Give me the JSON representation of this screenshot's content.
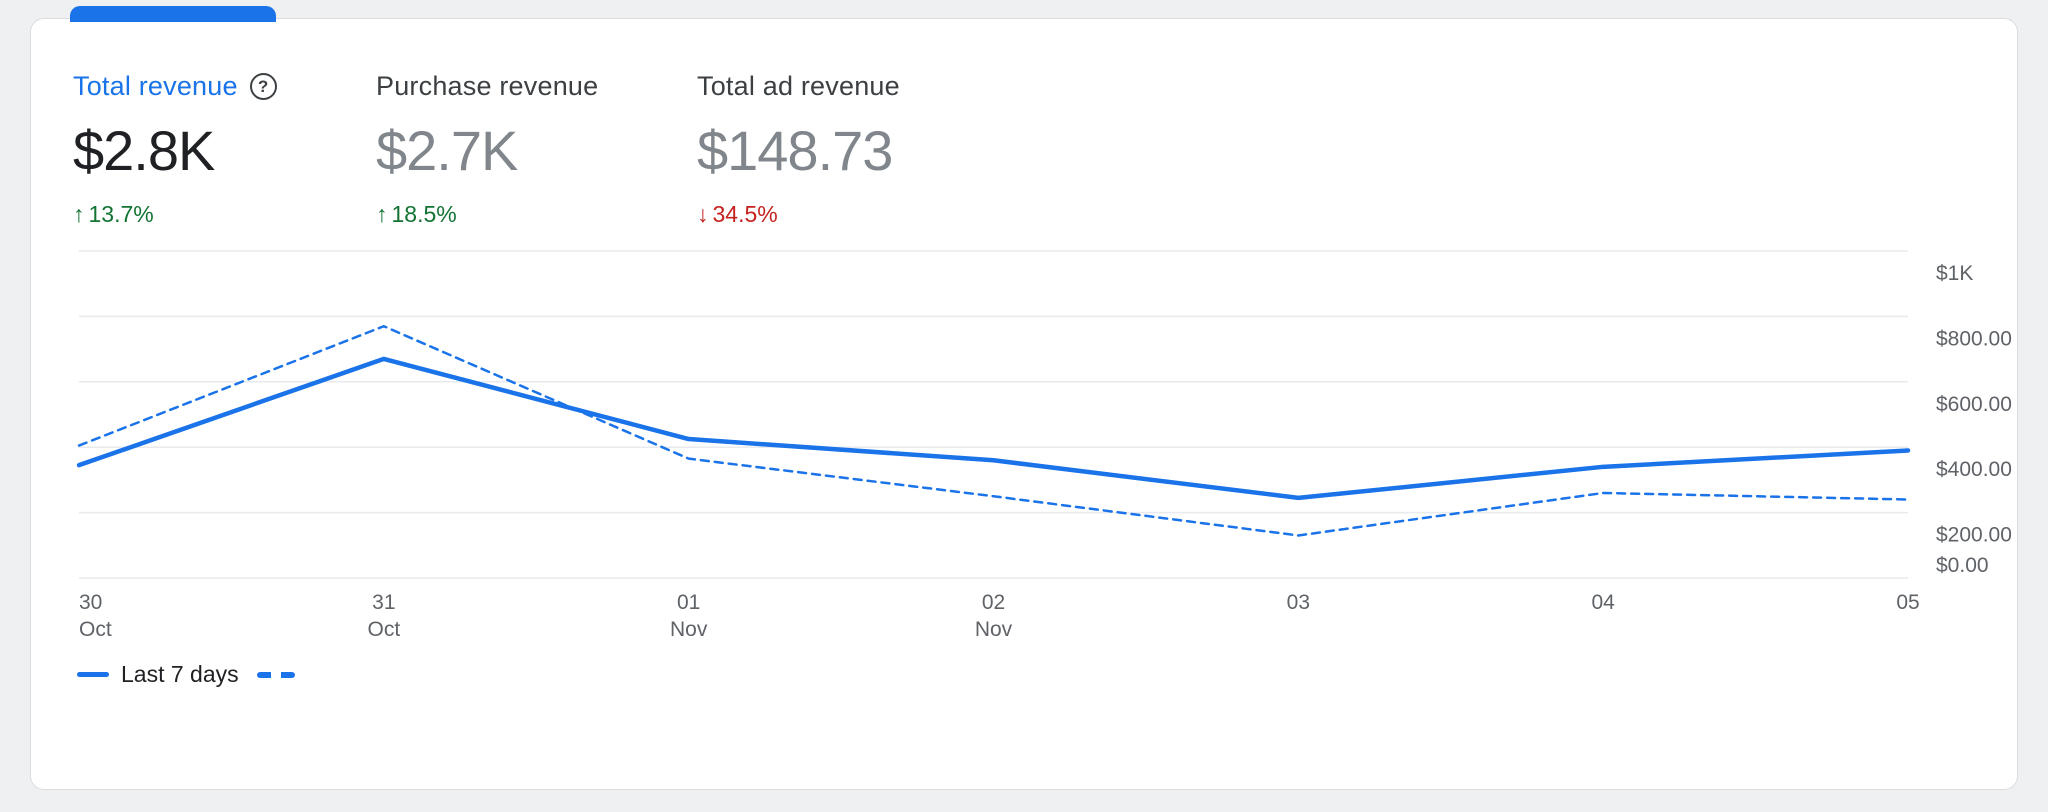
{
  "colors": {
    "accent_blue": "#1a73e8",
    "positive_green": "#137333",
    "negative_red": "#c5221f",
    "gridline": "#e8eaed",
    "axis_text": "#5f6368"
  },
  "metrics": [
    {
      "label": "Total revenue",
      "help_icon_glyph": "?",
      "value": "$2.8K",
      "delta_arrow": "↑",
      "delta": "13.7%",
      "direction": "up"
    },
    {
      "label": "Purchase revenue",
      "value": "$2.7K",
      "delta_arrow": "↑",
      "delta": "18.5%",
      "direction": "up"
    },
    {
      "label": "Total ad revenue",
      "value": "$148.73",
      "delta_arrow": "↓",
      "delta": "34.5%",
      "direction": "down"
    }
  ],
  "legend": {
    "solid_label": "Last 7 days"
  },
  "chart_data": {
    "type": "line",
    "x": [
      "30 Oct",
      "31 Oct",
      "01 Nov",
      "02 Nov",
      "03",
      "04",
      "05"
    ],
    "x_tick_labels": [
      [
        "30",
        "Oct"
      ],
      [
        "31",
        "Oct"
      ],
      [
        "01",
        "Nov"
      ],
      [
        "02",
        "Nov"
      ],
      [
        "03"
      ],
      [
        "04"
      ],
      [
        "05"
      ]
    ],
    "series": [
      {
        "name": "Last 7 days",
        "style": "solid",
        "color": "#1a73e8",
        "values": [
          345,
          670,
          425,
          360,
          245,
          340,
          390
        ]
      },
      {
        "name": "",
        "style": "dashed",
        "color": "#1a73e8",
        "values": [
          405,
          770,
          365,
          250,
          130,
          260,
          240
        ]
      }
    ],
    "ylim": [
      0,
      1000
    ],
    "y_ticks": [
      0,
      200,
      400,
      600,
      800,
      1000
    ],
    "y_tick_labels": [
      "$0.00",
      "$200.00",
      "$400.00",
      "$600.00",
      "$800.00",
      "$1K"
    ],
    "grid": true,
    "legend_position": "bottom-left"
  }
}
